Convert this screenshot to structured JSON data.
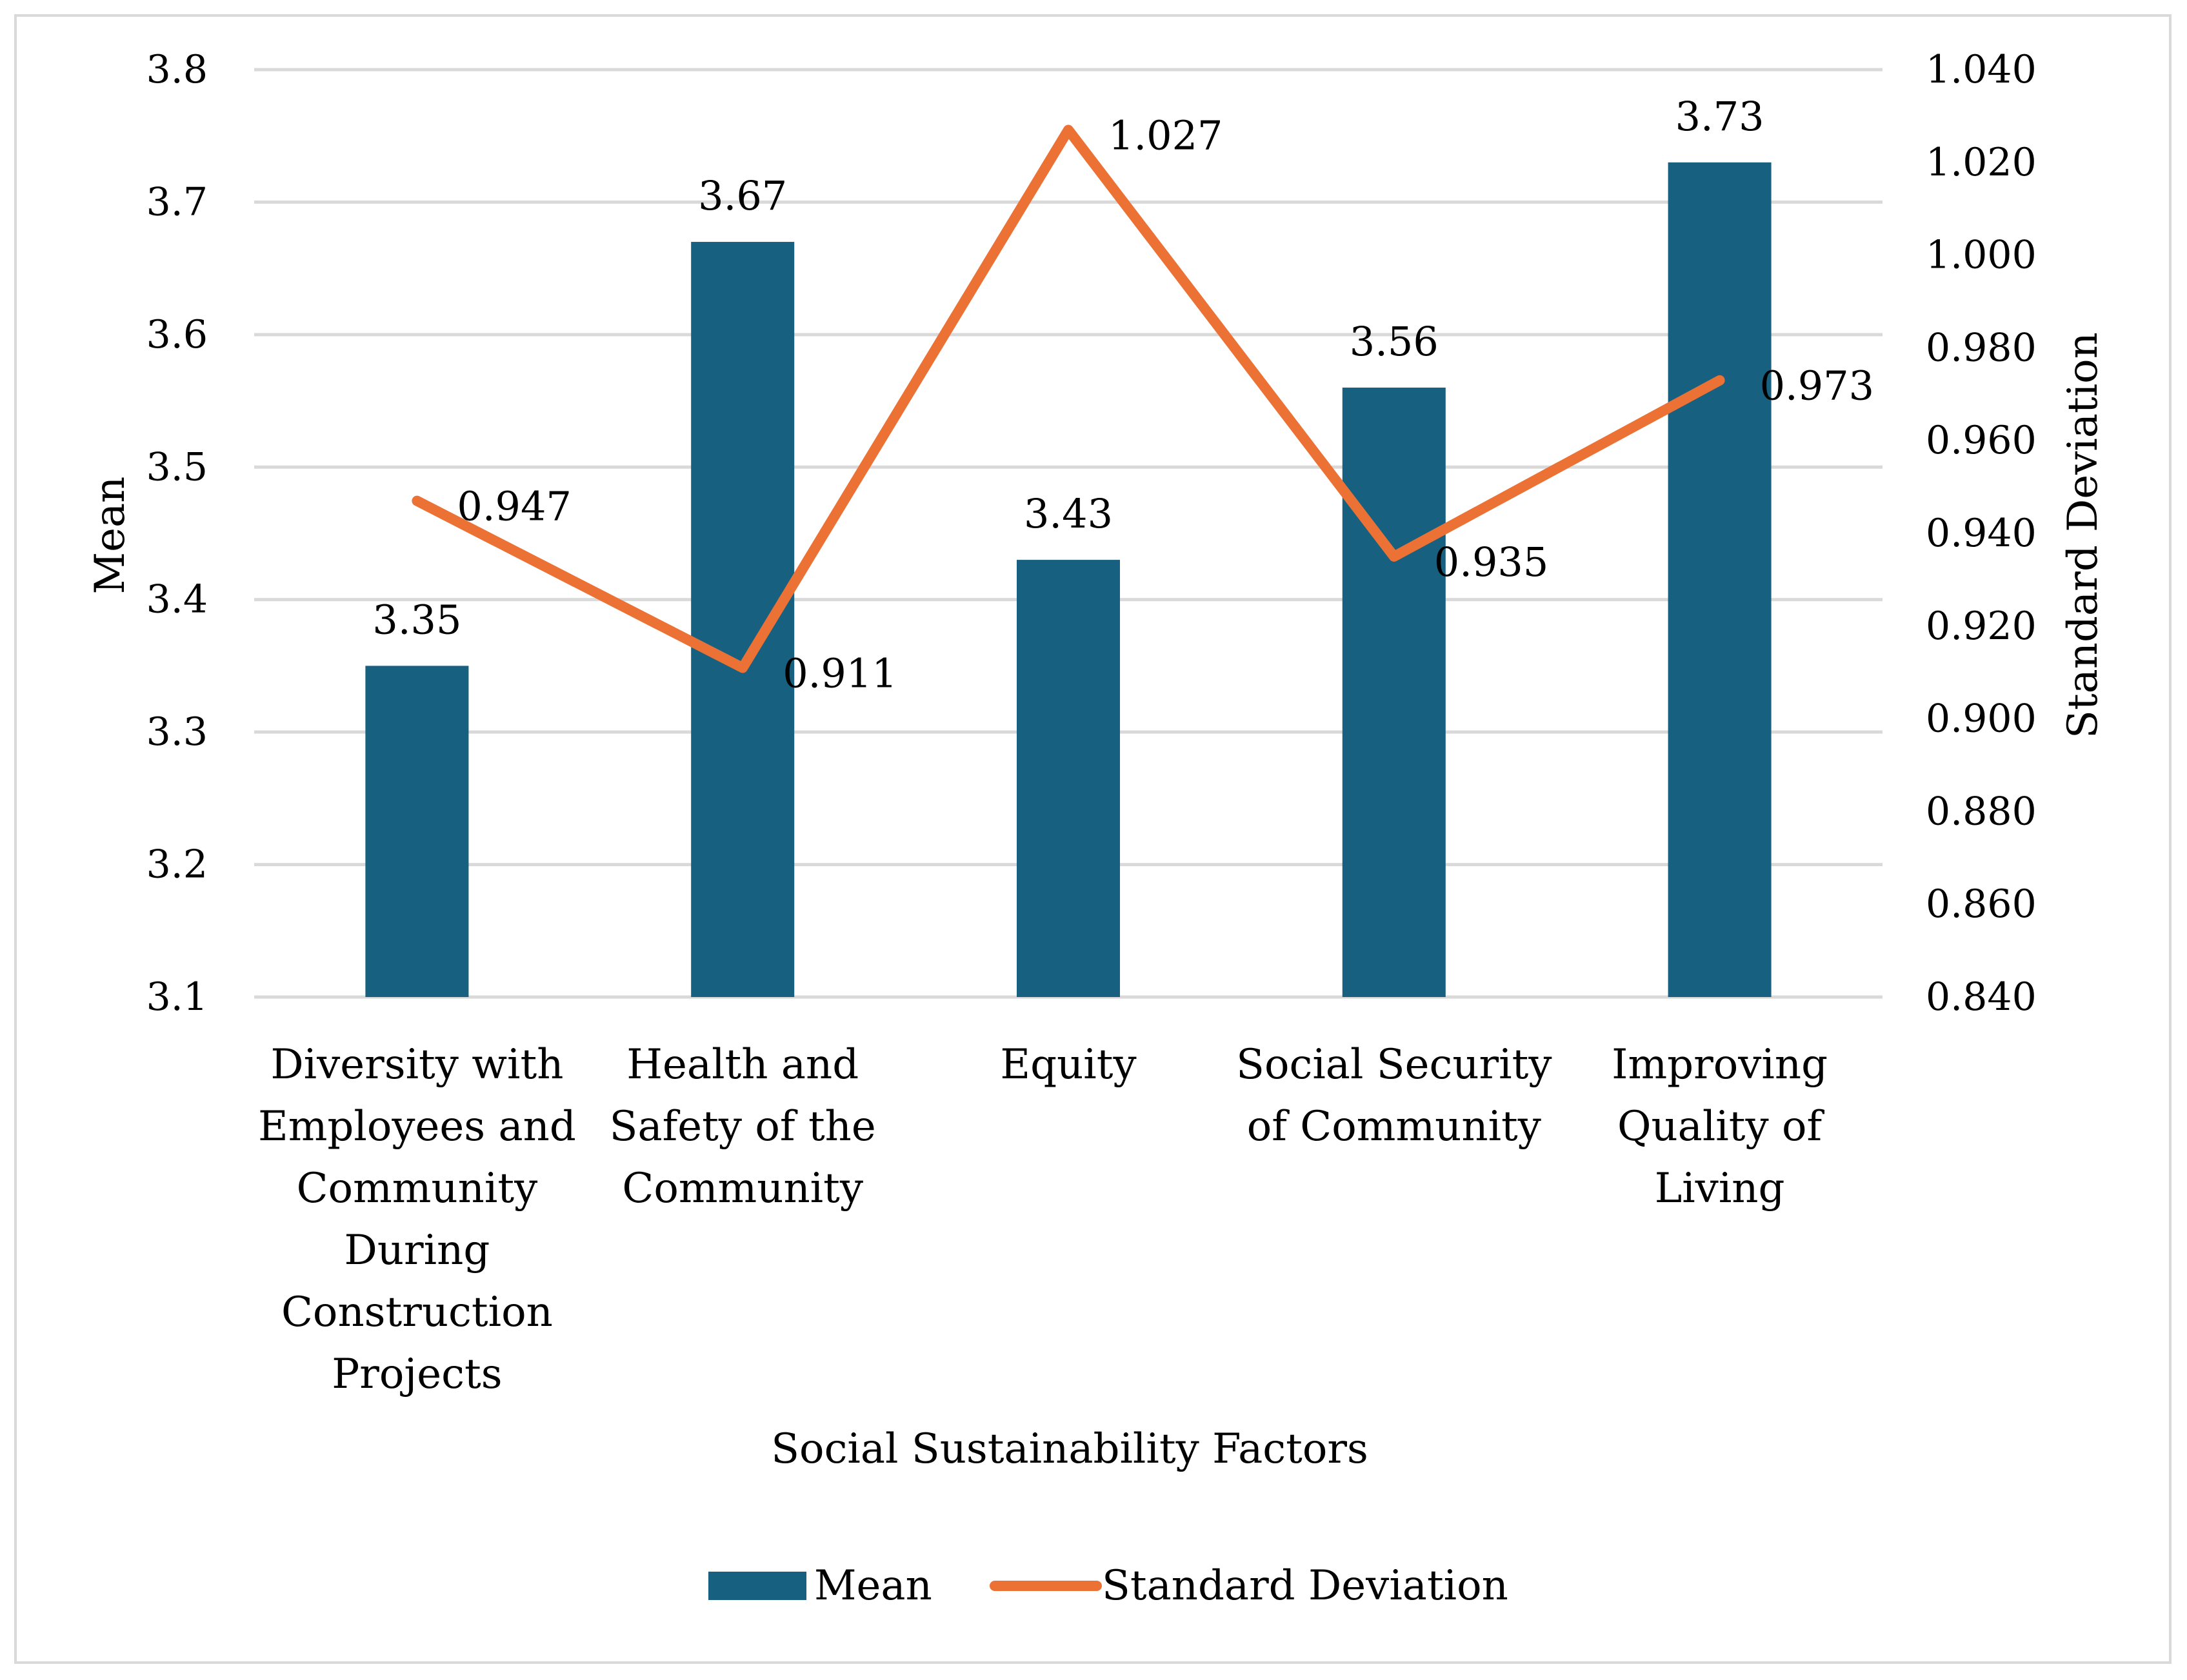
{
  "chart_data": {
    "type": "bar",
    "title": "",
    "categories": [
      [
        "Diversity with",
        "Employees and",
        "Community",
        "During",
        "Construction",
        "Projects"
      ],
      [
        "Health and",
        "Safety of the",
        "Community"
      ],
      [
        "Equity"
      ],
      [
        "Social Security",
        "of Community"
      ],
      [
        "Improving",
        "Quality of",
        "Living"
      ]
    ],
    "xlabel": "Social Sustainability Factors",
    "ylabel": "Mean",
    "y2label": "Standard Deviation",
    "ylim": [
      3.1,
      3.8
    ],
    "y2lim": [
      0.84,
      1.04
    ],
    "yticks": [
      "3.1",
      "3.2",
      "3.3",
      "3.4",
      "3.5",
      "3.6",
      "3.7",
      "3.8"
    ],
    "y2ticks": [
      "0.840",
      "0.860",
      "0.880",
      "0.900",
      "0.920",
      "0.940",
      "0.960",
      "0.980",
      "1.000",
      "1.020",
      "1.040"
    ],
    "grid": true,
    "legend_position": "bottom",
    "series": [
      {
        "name": "Mean",
        "type": "bar",
        "axis": "left",
        "color": "#17607f",
        "values": [
          3.35,
          3.67,
          3.43,
          3.56,
          3.73
        ],
        "labels": [
          "3.35",
          "3.67",
          "3.43",
          "3.56",
          "3.73"
        ]
      },
      {
        "name": "Standard Deviation",
        "type": "line",
        "axis": "right",
        "color": "#ec7134",
        "values": [
          0.947,
          0.911,
          1.027,
          0.935,
          0.973
        ],
        "labels": [
          "0.947",
          "0.911",
          "1.027",
          "0.935",
          "0.973"
        ]
      }
    ]
  }
}
